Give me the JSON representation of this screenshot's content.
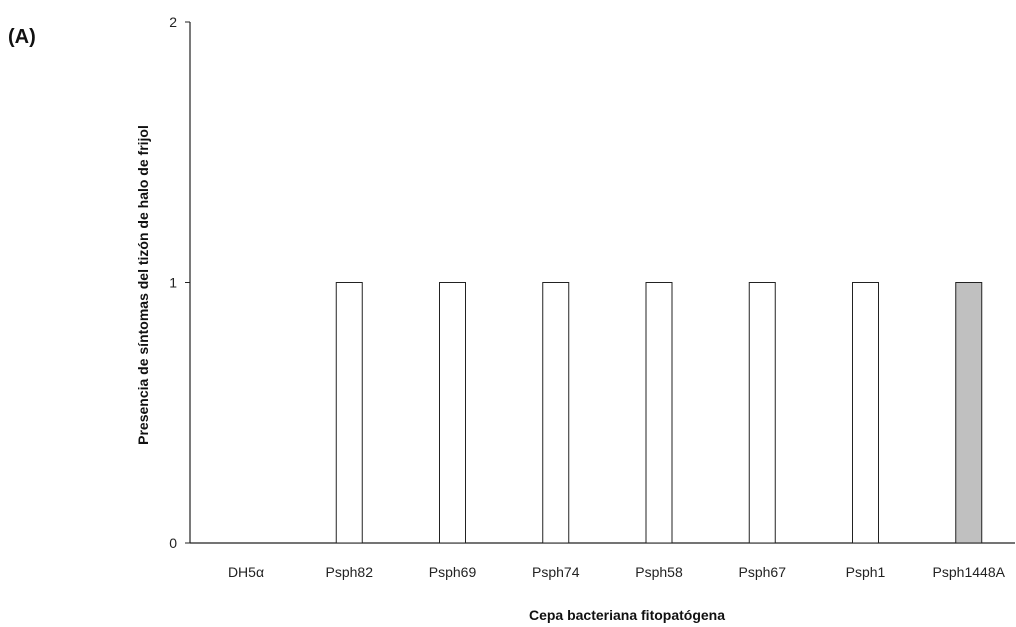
{
  "panel_label": "(A)",
  "chart_data": {
    "type": "bar",
    "categories": [
      "DH5α",
      "Psph82",
      "Psph69",
      "Psph74",
      "Psph58",
      "Psph67",
      "Psph1",
      "Psph1448A"
    ],
    "values": [
      0,
      1,
      1,
      1,
      1,
      1,
      1,
      1
    ],
    "bar_colors": [
      "#ffffff",
      "#ffffff",
      "#ffffff",
      "#ffffff",
      "#ffffff",
      "#ffffff",
      "#ffffff",
      "#c0c0c0"
    ],
    "xlabel": "Cepa bacteriana fitopatógena",
    "ylabel": "Presencia de síntomas del tizón de halo de frijol",
    "ylim": [
      0,
      2
    ],
    "yticks": [
      0,
      1,
      2
    ],
    "grid": false,
    "legend": "none"
  }
}
